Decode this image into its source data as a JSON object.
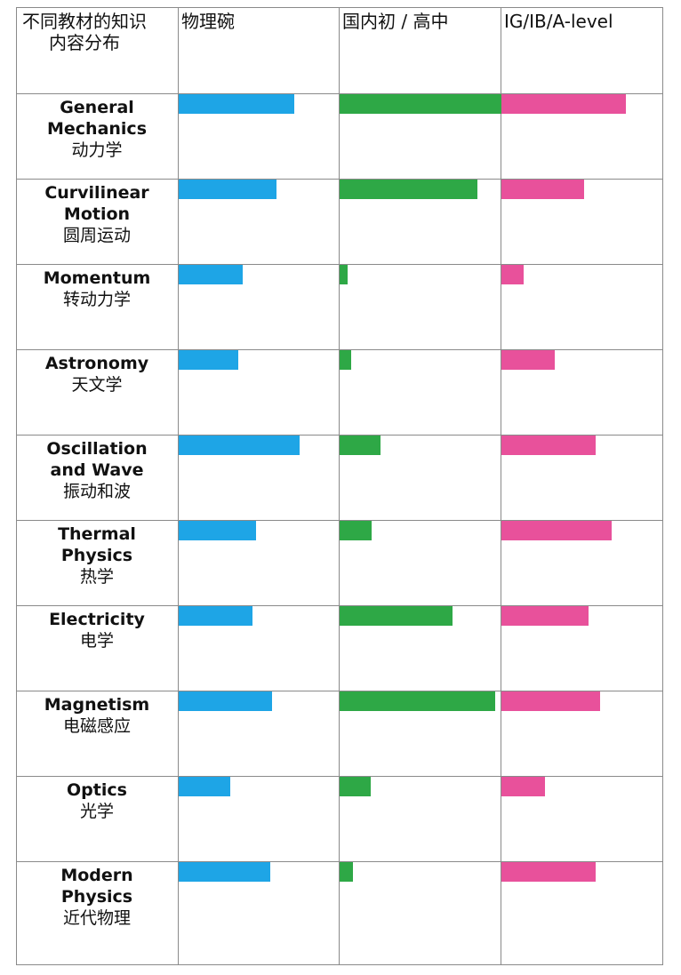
{
  "chart_data": {
    "type": "bar",
    "corner_header": "不同教材的知识内容分布",
    "categories": [
      {
        "en": "General Mechanics",
        "zh": "动力学"
      },
      {
        "en": "Curvilinear Motion",
        "zh": "圆周运动"
      },
      {
        "en": "Momentum",
        "zh": "转动力学"
      },
      {
        "en": "Astronomy",
        "zh": "天文学"
      },
      {
        "en": "Oscillation and Wave",
        "zh": "振动和波"
      },
      {
        "en": "Thermal Physics",
        "zh": "热学"
      },
      {
        "en": "Electricity",
        "zh": "电学"
      },
      {
        "en": "Magnetism",
        "zh": "电磁感应"
      },
      {
        "en": "Optics",
        "zh": "光学"
      },
      {
        "en": "Modern Physics",
        "zh": "近代物理"
      }
    ],
    "xlim": [
      0,
      100
    ],
    "series": [
      {
        "name": "物理碗",
        "color": "#1ea5e6",
        "values": [
          72,
          61,
          40,
          37,
          75,
          48,
          46,
          58,
          32,
          57
        ]
      },
      {
        "name": "国内初 / 高中",
        "color": "#2ea846",
        "values": [
          100,
          85,
          5,
          7,
          25,
          20,
          70,
          96,
          19,
          8
        ]
      },
      {
        "name": "IG/IB/A-level",
        "color": "#e8519b",
        "values": [
          77,
          51,
          14,
          33,
          58,
          68,
          54,
          61,
          27,
          58
        ]
      }
    ]
  }
}
